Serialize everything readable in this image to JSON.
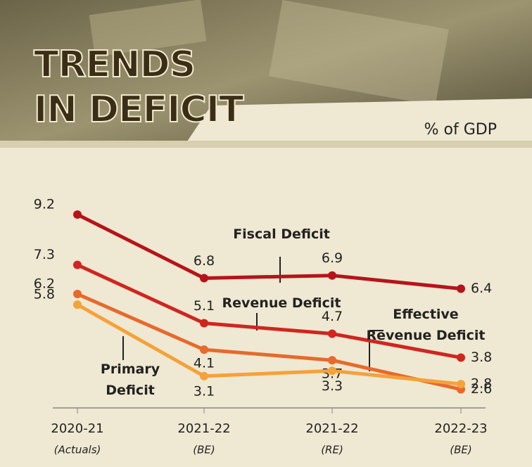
{
  "chart_data": {
    "type": "line",
    "title": "TRENDS IN DEFICIT",
    "subtitle": "% of GDP",
    "categories": [
      "2020-21",
      "2021-22",
      "2021-22",
      "2022-23"
    ],
    "category_notes": [
      "(Actuals)",
      "(BE)",
      "(RE)",
      "(BE)"
    ],
    "ylim": [
      1.9,
      9.6
    ],
    "series": [
      {
        "name": "Fiscal Deficit",
        "color": "#b5141a",
        "values": [
          9.2,
          6.8,
          6.9,
          6.4
        ]
      },
      {
        "name": "Revenue Deficit",
        "color": "#cf2620",
        "values": [
          7.3,
          5.1,
          4.7,
          3.8
        ]
      },
      {
        "name": "Effective Revenue Deficit",
        "color": "#e66a2c",
        "values": [
          6.2,
          4.1,
          3.7,
          2.6
        ]
      },
      {
        "name": "Primary Deficit",
        "color": "#f4a23a",
        "values": [
          5.8,
          3.1,
          3.3,
          2.8
        ]
      }
    ]
  }
}
